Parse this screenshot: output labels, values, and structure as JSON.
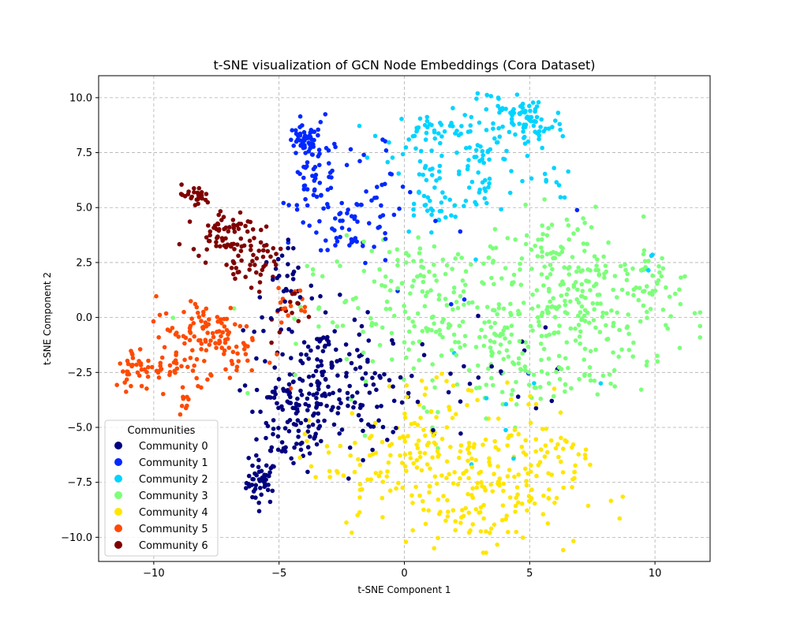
{
  "chart_data": {
    "type": "scatter",
    "title": "t-SNE visualization of GCN Node Embeddings (Cora Dataset)",
    "xlabel": "t-SNE Component 1",
    "ylabel": "t-SNE Component 2",
    "xlim": [
      -12.2,
      12.2
    ],
    "ylim": [
      -11.1,
      11.0
    ],
    "xticks": [
      -10,
      -5,
      0,
      5,
      10
    ],
    "xtick_labels": [
      "−10",
      "−5",
      "0",
      "5",
      "10"
    ],
    "yticks": [
      -10,
      -7.5,
      -5,
      -2.5,
      0,
      2.5,
      5,
      7.5,
      10
    ],
    "ytick_labels": [
      "−10.0",
      "−7.5",
      "−5.0",
      "−2.5",
      "0.0",
      "2.5",
      "5.0",
      "7.5",
      "10.0"
    ],
    "grid": true,
    "legend": {
      "title": "Communities",
      "position": "lower-left"
    },
    "series": [
      {
        "name": "Community 0",
        "color": "#00007f",
        "clusters": [
          {
            "cx": -5.7,
            "cy": -7.5,
            "sx": 0.3,
            "sy": 0.5,
            "n": 45
          },
          {
            "cx": -4.5,
            "cy": -4.6,
            "sx": 0.9,
            "sy": 1.2,
            "n": 110
          },
          {
            "cx": -3.3,
            "cy": -2.2,
            "sx": 0.9,
            "sy": 1.4,
            "n": 95
          },
          {
            "cx": -1.3,
            "cy": -3.6,
            "sx": 0.9,
            "sy": 1.1,
            "n": 50
          },
          {
            "cx": -4.8,
            "cy": 1.2,
            "sx": 0.6,
            "sy": 1.0,
            "n": 35
          },
          {
            "cx": 2.5,
            "cy": -2.5,
            "sx": 3.0,
            "sy": 2.5,
            "n": 30
          }
        ]
      },
      {
        "name": "Community 1",
        "color": "#0028ff",
        "clusters": [
          {
            "cx": -4.0,
            "cy": 8.0,
            "sx": 0.35,
            "sy": 0.35,
            "n": 45
          },
          {
            "cx": -3.5,
            "cy": 6.2,
            "sx": 0.5,
            "sy": 1.1,
            "n": 55
          },
          {
            "cx": -2.0,
            "cy": 4.3,
            "sx": 0.8,
            "sy": 0.6,
            "n": 45
          },
          {
            "cx": -1.1,
            "cy": 6.5,
            "sx": 0.8,
            "sy": 1.0,
            "n": 20
          },
          {
            "cx": -1.0,
            "cy": 2.5,
            "sx": 2.5,
            "sy": 3.0,
            "n": 15
          }
        ]
      },
      {
        "name": "Community 2",
        "color": "#00d4ff",
        "clusters": [
          {
            "cx": 1.0,
            "cy": 8.6,
            "sx": 0.7,
            "sy": 0.3,
            "n": 30
          },
          {
            "cx": 5.0,
            "cy": 8.8,
            "sx": 0.7,
            "sy": 0.6,
            "n": 65
          },
          {
            "cx": 3.0,
            "cy": 7.2,
            "sx": 0.8,
            "sy": 1.6,
            "n": 80
          },
          {
            "cx": 0.9,
            "cy": 5.8,
            "sx": 0.5,
            "sy": 1.0,
            "n": 35
          },
          {
            "cx": 3.7,
            "cy": 9.6,
            "sx": 0.5,
            "sy": 0.3,
            "n": 12
          },
          {
            "cx": -0.8,
            "cy": 7.2,
            "sx": 0.8,
            "sy": 1.0,
            "n": 12
          },
          {
            "cx": 5.8,
            "cy": 6.2,
            "sx": 0.4,
            "sy": 0.4,
            "n": 10
          },
          {
            "cx": 4.5,
            "cy": -4.5,
            "sx": 1.5,
            "sy": 1.5,
            "n": 8
          },
          {
            "cx": 9.5,
            "cy": 2.6,
            "sx": 0.3,
            "sy": 0.3,
            "n": 5
          }
        ]
      },
      {
        "name": "Community 3",
        "color": "#7cff79",
        "clusters": [
          {
            "cx": 2.8,
            "cy": -0.3,
            "sx": 3.2,
            "sy": 1.8,
            "n": 280
          },
          {
            "cx": 7.6,
            "cy": 0.7,
            "sx": 1.7,
            "sy": 1.5,
            "n": 170
          },
          {
            "cx": 6.0,
            "cy": 3.2,
            "sx": 1.0,
            "sy": 0.8,
            "n": 40
          },
          {
            "cx": 0.3,
            "cy": 2.2,
            "sx": 2.0,
            "sy": 1.0,
            "n": 30
          },
          {
            "cx": 5.0,
            "cy": -3.0,
            "sx": 1.5,
            "sy": 0.7,
            "n": 30
          },
          {
            "cx": 10.0,
            "cy": 1.8,
            "sx": 0.5,
            "sy": 0.5,
            "n": 15
          }
        ]
      },
      {
        "name": "Community 4",
        "color": "#ffe600",
        "clusters": [
          {
            "cx": 3.0,
            "cy": -7.8,
            "sx": 2.0,
            "sy": 1.3,
            "n": 190
          },
          {
            "cx": 0.5,
            "cy": -5.8,
            "sx": 1.0,
            "sy": 0.9,
            "n": 55
          },
          {
            "cx": 5.0,
            "cy": -5.5,
            "sx": 1.0,
            "sy": 1.2,
            "n": 40
          },
          {
            "cx": -1.5,
            "cy": -6.7,
            "sx": 0.8,
            "sy": 0.9,
            "n": 25
          },
          {
            "cx": 1.5,
            "cy": -3.5,
            "sx": 0.8,
            "sy": 0.7,
            "n": 15
          },
          {
            "cx": -3.2,
            "cy": -6.0,
            "sx": 0.6,
            "sy": 1.2,
            "n": 10
          }
        ]
      },
      {
        "name": "Community 5",
        "color": "#ff4a00",
        "clusters": [
          {
            "cx": -8.0,
            "cy": -0.6,
            "sx": 1.0,
            "sy": 0.8,
            "n": 75
          },
          {
            "cx": -6.8,
            "cy": -1.5,
            "sx": 0.8,
            "sy": 0.8,
            "n": 35
          },
          {
            "cx": -10.6,
            "cy": -2.3,
            "sx": 0.5,
            "sy": 0.5,
            "n": 40
          },
          {
            "cx": -9.1,
            "cy": -2.1,
            "sx": 0.5,
            "sy": 0.6,
            "n": 25
          },
          {
            "cx": -8.7,
            "cy": -3.6,
            "sx": 0.4,
            "sy": 0.3,
            "n": 10
          },
          {
            "cx": -4.6,
            "cy": 0.6,
            "sx": 0.4,
            "sy": 0.4,
            "n": 15
          }
        ]
      },
      {
        "name": "Community 6",
        "color": "#7f0000",
        "clusters": [
          {
            "cx": -8.4,
            "cy": 5.5,
            "sx": 0.35,
            "sy": 0.25,
            "n": 25
          },
          {
            "cx": -7.3,
            "cy": 4.0,
            "sx": 0.6,
            "sy": 0.5,
            "n": 55
          },
          {
            "cx": -6.3,
            "cy": 2.5,
            "sx": 0.5,
            "sy": 0.6,
            "n": 40
          },
          {
            "cx": -5.5,
            "cy": 3.0,
            "sx": 0.3,
            "sy": 0.4,
            "n": 15
          },
          {
            "cx": -4.5,
            "cy": 0.0,
            "sx": 0.4,
            "sy": 0.7,
            "n": 12
          }
        ]
      }
    ]
  }
}
